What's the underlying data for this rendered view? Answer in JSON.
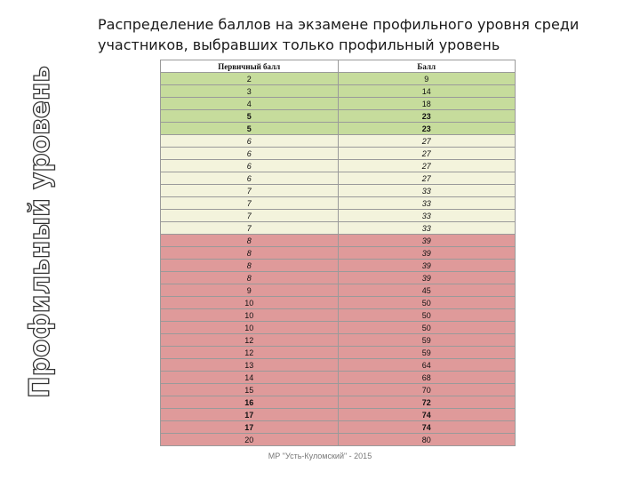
{
  "side_label": "Профильный уровень",
  "title": {
    "line1": "Распределение баллов на экзамене профильного уровня среди",
    "line2": "участников, выбравших только профильный уровень"
  },
  "table": {
    "headers": [
      "Первичный балл",
      "Балл"
    ],
    "rows": [
      {
        "primary": "2",
        "score": "9",
        "tone": "g",
        "bold": false,
        "italic": false
      },
      {
        "primary": "3",
        "score": "14",
        "tone": "g",
        "bold": false,
        "italic": false
      },
      {
        "primary": "4",
        "score": "18",
        "tone": "g",
        "bold": false,
        "italic": false
      },
      {
        "primary": "5",
        "score": "23",
        "tone": "g",
        "bold": true,
        "italic": false
      },
      {
        "primary": "5",
        "score": "23",
        "tone": "g",
        "bold": true,
        "italic": false
      },
      {
        "primary": "6",
        "score": "27",
        "tone": "y",
        "bold": false,
        "italic": true
      },
      {
        "primary": "6",
        "score": "27",
        "tone": "y",
        "bold": false,
        "italic": true
      },
      {
        "primary": "6",
        "score": "27",
        "tone": "y",
        "bold": false,
        "italic": true
      },
      {
        "primary": "6",
        "score": "27",
        "tone": "y",
        "bold": false,
        "italic": true
      },
      {
        "primary": "7",
        "score": "33",
        "tone": "y",
        "bold": false,
        "italic": true
      },
      {
        "primary": "7",
        "score": "33",
        "tone": "y",
        "bold": false,
        "italic": true
      },
      {
        "primary": "7",
        "score": "33",
        "tone": "y",
        "bold": false,
        "italic": true
      },
      {
        "primary": "7",
        "score": "33",
        "tone": "y",
        "bold": false,
        "italic": true
      },
      {
        "primary": "8",
        "score": "39",
        "tone": "r",
        "bold": false,
        "italic": true
      },
      {
        "primary": "8",
        "score": "39",
        "tone": "r",
        "bold": false,
        "italic": true
      },
      {
        "primary": "8",
        "score": "39",
        "tone": "r",
        "bold": false,
        "italic": true
      },
      {
        "primary": "8",
        "score": "39",
        "tone": "r",
        "bold": false,
        "italic": true
      },
      {
        "primary": "9",
        "score": "45",
        "tone": "r",
        "bold": false,
        "italic": false
      },
      {
        "primary": "10",
        "score": "50",
        "tone": "r",
        "bold": false,
        "italic": false
      },
      {
        "primary": "10",
        "score": "50",
        "tone": "r",
        "bold": false,
        "italic": false
      },
      {
        "primary": "10",
        "score": "50",
        "tone": "r",
        "bold": false,
        "italic": false
      },
      {
        "primary": "12",
        "score": "59",
        "tone": "r",
        "bold": false,
        "italic": false
      },
      {
        "primary": "12",
        "score": "59",
        "tone": "r",
        "bold": false,
        "italic": false
      },
      {
        "primary": "13",
        "score": "64",
        "tone": "r",
        "bold": false,
        "italic": false
      },
      {
        "primary": "14",
        "score": "68",
        "tone": "r",
        "bold": false,
        "italic": false
      },
      {
        "primary": "15",
        "score": "70",
        "tone": "r",
        "bold": false,
        "italic": false
      },
      {
        "primary": "16",
        "score": "72",
        "tone": "r",
        "bold": true,
        "italic": false
      },
      {
        "primary": "17",
        "score": "74",
        "tone": "r",
        "bold": true,
        "italic": false
      },
      {
        "primary": "17",
        "score": "74",
        "tone": "r",
        "bold": true,
        "italic": false
      },
      {
        "primary": "20",
        "score": "80",
        "tone": "r",
        "bold": false,
        "italic": false
      }
    ]
  },
  "footer": "МР \"Усть-Куломский\" - 2015",
  "colors": {
    "green": "#c6dc9c",
    "light_yellow": "#f3f3dc",
    "red": "#df9a9a",
    "side_label_stroke": "#333333"
  }
}
